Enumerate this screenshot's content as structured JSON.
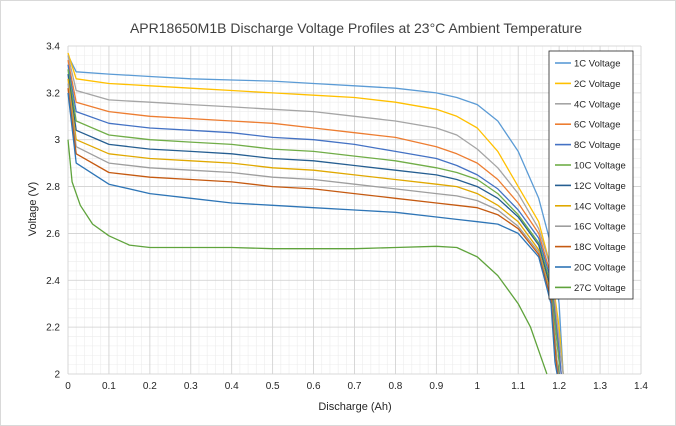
{
  "chart_data": {
    "type": "line",
    "title": "APR18650M1B  Discharge Voltage Profiles at 23°C Ambient Temperature",
    "xlabel": "Discharge (Ah)",
    "ylabel": "Voltage (V)",
    "xlim": [
      0,
      1.4
    ],
    "ylim": [
      2,
      3.4
    ],
    "xticks": [
      "0",
      "0.1",
      "0.2",
      "0.3",
      "0.4",
      "0.5",
      "0.6",
      "0.7",
      "0.8",
      "0.9",
      "1",
      "1.1",
      "1.2",
      "1.3",
      "1.4"
    ],
    "yticks": [
      "2",
      "2.2",
      "2.4",
      "2.6",
      "2.8",
      "3",
      "3.2",
      "3.4"
    ],
    "grid": "major and minor",
    "legend_position": "right, inside plot",
    "series": [
      {
        "name": "1C Voltage",
        "color": "#5b9bd5",
        "points": [
          [
            0,
            3.36
          ],
          [
            0.02,
            3.29
          ],
          [
            0.1,
            3.28
          ],
          [
            0.2,
            3.27
          ],
          [
            0.3,
            3.26
          ],
          [
            0.4,
            3.255
          ],
          [
            0.5,
            3.25
          ],
          [
            0.6,
            3.24
          ],
          [
            0.7,
            3.23
          ],
          [
            0.8,
            3.22
          ],
          [
            0.9,
            3.2
          ],
          [
            0.95,
            3.18
          ],
          [
            1.0,
            3.15
          ],
          [
            1.05,
            3.08
          ],
          [
            1.1,
            2.95
          ],
          [
            1.15,
            2.75
          ],
          [
            1.18,
            2.55
          ],
          [
            1.2,
            2.3
          ],
          [
            1.21,
            2.0
          ]
        ]
      },
      {
        "name": "2C Voltage",
        "color": "#ffc000",
        "points": [
          [
            0,
            3.37
          ],
          [
            0.02,
            3.26
          ],
          [
            0.1,
            3.24
          ],
          [
            0.2,
            3.23
          ],
          [
            0.3,
            3.22
          ],
          [
            0.4,
            3.21
          ],
          [
            0.5,
            3.2
          ],
          [
            0.6,
            3.19
          ],
          [
            0.7,
            3.18
          ],
          [
            0.8,
            3.16
          ],
          [
            0.9,
            3.13
          ],
          [
            0.95,
            3.1
          ],
          [
            1.0,
            3.05
          ],
          [
            1.05,
            2.95
          ],
          [
            1.1,
            2.8
          ],
          [
            1.15,
            2.65
          ],
          [
            1.18,
            2.45
          ],
          [
            1.2,
            2.2
          ],
          [
            1.21,
            2.0
          ]
        ]
      },
      {
        "name": "4C Voltage",
        "color": "#a5a5a5",
        "points": [
          [
            0,
            3.36
          ],
          [
            0.02,
            3.21
          ],
          [
            0.1,
            3.17
          ],
          [
            0.2,
            3.16
          ],
          [
            0.3,
            3.15
          ],
          [
            0.4,
            3.14
          ],
          [
            0.5,
            3.13
          ],
          [
            0.6,
            3.12
          ],
          [
            0.7,
            3.1
          ],
          [
            0.8,
            3.08
          ],
          [
            0.9,
            3.05
          ],
          [
            0.95,
            3.02
          ],
          [
            1.0,
            2.96
          ],
          [
            1.05,
            2.88
          ],
          [
            1.1,
            2.77
          ],
          [
            1.15,
            2.62
          ],
          [
            1.18,
            2.45
          ],
          [
            1.2,
            2.15
          ],
          [
            1.21,
            2.0
          ]
        ]
      },
      {
        "name": "6C Voltage",
        "color": "#ed7d31",
        "points": [
          [
            0,
            3.34
          ],
          [
            0.02,
            3.16
          ],
          [
            0.1,
            3.12
          ],
          [
            0.2,
            3.1
          ],
          [
            0.3,
            3.09
          ],
          [
            0.4,
            3.08
          ],
          [
            0.5,
            3.07
          ],
          [
            0.6,
            3.05
          ],
          [
            0.7,
            3.03
          ],
          [
            0.8,
            3.01
          ],
          [
            0.9,
            2.97
          ],
          [
            0.95,
            2.94
          ],
          [
            1.0,
            2.9
          ],
          [
            1.05,
            2.83
          ],
          [
            1.1,
            2.73
          ],
          [
            1.15,
            2.6
          ],
          [
            1.18,
            2.42
          ],
          [
            1.2,
            2.1
          ],
          [
            1.205,
            2.0
          ]
        ]
      },
      {
        "name": "8C Voltage",
        "color": "#4472c4",
        "points": [
          [
            0,
            3.32
          ],
          [
            0.02,
            3.12
          ],
          [
            0.1,
            3.07
          ],
          [
            0.2,
            3.05
          ],
          [
            0.3,
            3.04
          ],
          [
            0.4,
            3.03
          ],
          [
            0.5,
            3.01
          ],
          [
            0.6,
            3.0
          ],
          [
            0.7,
            2.98
          ],
          [
            0.8,
            2.95
          ],
          [
            0.9,
            2.92
          ],
          [
            0.95,
            2.89
          ],
          [
            1.0,
            2.85
          ],
          [
            1.05,
            2.79
          ],
          [
            1.1,
            2.7
          ],
          [
            1.15,
            2.58
          ],
          [
            1.18,
            2.4
          ],
          [
            1.2,
            2.1
          ],
          [
            1.205,
            2.0
          ]
        ]
      },
      {
        "name": "10C Voltage",
        "color": "#70ad47",
        "points": [
          [
            0,
            3.3
          ],
          [
            0.02,
            3.08
          ],
          [
            0.1,
            3.02
          ],
          [
            0.2,
            3.0
          ],
          [
            0.3,
            2.99
          ],
          [
            0.4,
            2.98
          ],
          [
            0.5,
            2.96
          ],
          [
            0.6,
            2.95
          ],
          [
            0.7,
            2.93
          ],
          [
            0.8,
            2.91
          ],
          [
            0.9,
            2.88
          ],
          [
            0.95,
            2.86
          ],
          [
            1.0,
            2.83
          ],
          [
            1.05,
            2.77
          ],
          [
            1.1,
            2.68
          ],
          [
            1.15,
            2.56
          ],
          [
            1.18,
            2.38
          ],
          [
            1.2,
            2.05
          ],
          [
            1.2,
            2.0
          ]
        ]
      },
      {
        "name": "12C Voltage",
        "color": "#255e91",
        "points": [
          [
            0,
            3.28
          ],
          [
            0.02,
            3.04
          ],
          [
            0.1,
            2.98
          ],
          [
            0.2,
            2.96
          ],
          [
            0.3,
            2.95
          ],
          [
            0.4,
            2.94
          ],
          [
            0.5,
            2.92
          ],
          [
            0.6,
            2.91
          ],
          [
            0.7,
            2.89
          ],
          [
            0.8,
            2.87
          ],
          [
            0.9,
            2.85
          ],
          [
            0.95,
            2.83
          ],
          [
            1.0,
            2.8
          ],
          [
            1.05,
            2.75
          ],
          [
            1.1,
            2.67
          ],
          [
            1.15,
            2.55
          ],
          [
            1.18,
            2.36
          ],
          [
            1.195,
            2.05
          ],
          [
            1.2,
            2.0
          ]
        ]
      },
      {
        "name": "14C Voltage",
        "color": "#e0a800",
        "points": [
          [
            0,
            3.26
          ],
          [
            0.02,
            3.0
          ],
          [
            0.1,
            2.94
          ],
          [
            0.2,
            2.92
          ],
          [
            0.3,
            2.91
          ],
          [
            0.4,
            2.9
          ],
          [
            0.5,
            2.88
          ],
          [
            0.6,
            2.87
          ],
          [
            0.7,
            2.85
          ],
          [
            0.8,
            2.83
          ],
          [
            0.9,
            2.81
          ],
          [
            0.95,
            2.8
          ],
          [
            1.0,
            2.77
          ],
          [
            1.05,
            2.72
          ],
          [
            1.1,
            2.65
          ],
          [
            1.15,
            2.53
          ],
          [
            1.18,
            2.34
          ],
          [
            1.195,
            2.05
          ],
          [
            1.198,
            2.0
          ]
        ]
      },
      {
        "name": "16C Voltage",
        "color": "#9e9e9e",
        "points": [
          [
            0,
            3.24
          ],
          [
            0.02,
            2.97
          ],
          [
            0.1,
            2.9
          ],
          [
            0.2,
            2.88
          ],
          [
            0.3,
            2.87
          ],
          [
            0.4,
            2.86
          ],
          [
            0.5,
            2.84
          ],
          [
            0.6,
            2.83
          ],
          [
            0.7,
            2.81
          ],
          [
            0.8,
            2.79
          ],
          [
            0.9,
            2.77
          ],
          [
            0.95,
            2.76
          ],
          [
            1.0,
            2.74
          ],
          [
            1.05,
            2.7
          ],
          [
            1.1,
            2.63
          ],
          [
            1.15,
            2.52
          ],
          [
            1.18,
            2.33
          ],
          [
            1.195,
            2.05
          ],
          [
            1.197,
            2.0
          ]
        ]
      },
      {
        "name": "18C Voltage",
        "color": "#c55a11",
        "points": [
          [
            0,
            3.22
          ],
          [
            0.02,
            2.94
          ],
          [
            0.1,
            2.86
          ],
          [
            0.2,
            2.84
          ],
          [
            0.3,
            2.83
          ],
          [
            0.4,
            2.82
          ],
          [
            0.5,
            2.8
          ],
          [
            0.6,
            2.79
          ],
          [
            0.7,
            2.77
          ],
          [
            0.8,
            2.75
          ],
          [
            0.9,
            2.73
          ],
          [
            0.95,
            2.72
          ],
          [
            1.0,
            2.71
          ],
          [
            1.05,
            2.68
          ],
          [
            1.1,
            2.62
          ],
          [
            1.15,
            2.51
          ],
          [
            1.18,
            2.32
          ],
          [
            1.193,
            2.05
          ],
          [
            1.196,
            2.0
          ]
        ]
      },
      {
        "name": "20C Voltage",
        "color": "#2e75b6",
        "points": [
          [
            0,
            3.2
          ],
          [
            0.02,
            2.9
          ],
          [
            0.1,
            2.81
          ],
          [
            0.2,
            2.77
          ],
          [
            0.3,
            2.75
          ],
          [
            0.4,
            2.73
          ],
          [
            0.5,
            2.72
          ],
          [
            0.6,
            2.71
          ],
          [
            0.7,
            2.7
          ],
          [
            0.8,
            2.69
          ],
          [
            0.9,
            2.67
          ],
          [
            0.95,
            2.66
          ],
          [
            1.0,
            2.65
          ],
          [
            1.05,
            2.64
          ],
          [
            1.1,
            2.6
          ],
          [
            1.15,
            2.5
          ],
          [
            1.18,
            2.3
          ],
          [
            1.19,
            2.05
          ],
          [
            1.195,
            2.0
          ]
        ]
      },
      {
        "name": "27C Voltage",
        "color": "#5fa33c",
        "points": [
          [
            0,
            3.0
          ],
          [
            0.01,
            2.82
          ],
          [
            0.03,
            2.72
          ],
          [
            0.06,
            2.64
          ],
          [
            0.1,
            2.59
          ],
          [
            0.15,
            2.55
          ],
          [
            0.2,
            2.54
          ],
          [
            0.3,
            2.54
          ],
          [
            0.4,
            2.54
          ],
          [
            0.5,
            2.535
          ],
          [
            0.6,
            2.535
          ],
          [
            0.7,
            2.535
          ],
          [
            0.8,
            2.54
          ],
          [
            0.9,
            2.545
          ],
          [
            0.95,
            2.54
          ],
          [
            1.0,
            2.5
          ],
          [
            1.05,
            2.42
          ],
          [
            1.1,
            2.3
          ],
          [
            1.13,
            2.2
          ],
          [
            1.16,
            2.05
          ],
          [
            1.17,
            2.0
          ]
        ]
      }
    ]
  }
}
